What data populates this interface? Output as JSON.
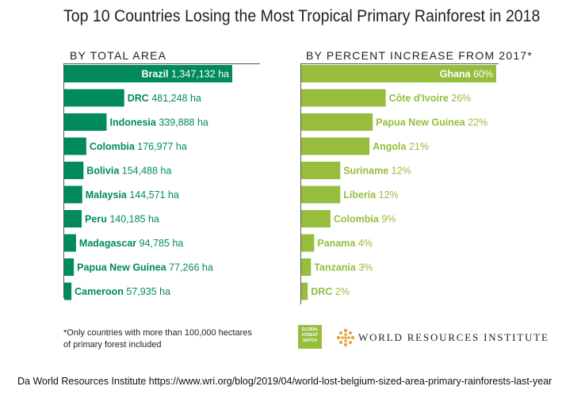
{
  "title": "Top 10 Countries Losing the Most Tropical Primary Rainforest in 2018",
  "chart_data": [
    {
      "type": "bar",
      "orientation": "horizontal",
      "subtitle": "BY TOTAL AREA",
      "unit": "ha",
      "color": "#008a5e",
      "categories": [
        "Brazil",
        "DRC",
        "Indonesia",
        "Colombia",
        "Bolivia",
        "Malaysia",
        "Peru",
        "Madagascar",
        "Papua New Guinea",
        "Cameroon"
      ],
      "values": [
        1347132,
        481248,
        339888,
        176977,
        154488,
        144571,
        140185,
        94785,
        77266,
        57935
      ],
      "labels": [
        "1,347,132 ha",
        "481,248 ha",
        "339,888 ha",
        "176,977 ha",
        "154,488 ha",
        "144,571 ha",
        "140,185 ha",
        "94,785 ha",
        "77,266 ha",
        "57,935 ha"
      ]
    },
    {
      "type": "bar",
      "orientation": "horizontal",
      "subtitle": "BY PERCENT INCREASE FROM 2017*",
      "unit": "%",
      "color": "#97bd3d",
      "categories": [
        "Ghana",
        "Côte d'Ivoire",
        "Papua New Guinea",
        "Angola",
        "Suriname",
        "Liberia",
        "Colombia",
        "Panama",
        "Tanzania",
        "DRC"
      ],
      "values": [
        60,
        26,
        22,
        21,
        12,
        12,
        9,
        4,
        3,
        2
      ],
      "labels": [
        "60%",
        "26%",
        "22%",
        "21%",
        "12%",
        "12%",
        "9%",
        "4%",
        "3%",
        "2%"
      ]
    }
  ],
  "footnote": "*Only countries with more than 100,000 hectares of primary forest included",
  "logos": {
    "gfw_lines": [
      "GLOBAL",
      "FOREST",
      "WATCH"
    ],
    "wri_name": "WORLD RESOURCES INSTITUTE"
  },
  "source": "Da World Resources Institute https://www.wri.org/blog/2019/04/world-lost-belgium-sized-area-primary-rainforests-last-year"
}
